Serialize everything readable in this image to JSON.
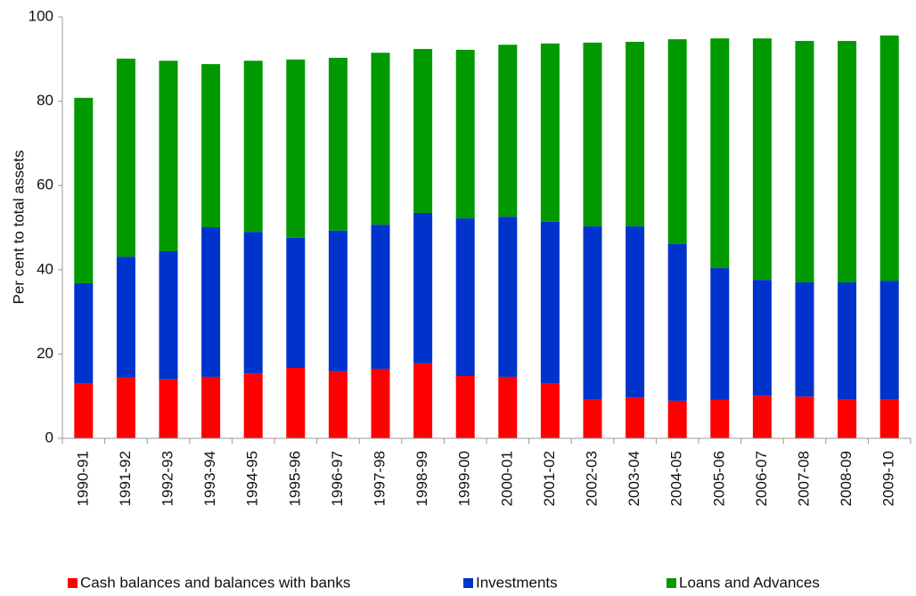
{
  "chart_data": {
    "type": "stacked-bar",
    "y_label": "Per cent to total assets",
    "categories": [
      "1990-91",
      "1991-92",
      "1992-93",
      "1993-94",
      "1994-95",
      "1995-96",
      "1996-97",
      "1997-98",
      "1998-99",
      "1999-00",
      "2000-01",
      "2001-02",
      "2002-03",
      "2003-04",
      "2004-05",
      "2005-06",
      "2006-07",
      "2007-08",
      "2008-09",
      "2009-10"
    ],
    "series": [
      {
        "name": "Cash balances and balances with banks",
        "color": "#ff0000",
        "values": [
          13.1,
          14.4,
          14.0,
          14.6,
          15.4,
          16.7,
          15.9,
          16.5,
          17.8,
          14.8,
          14.6,
          13.1,
          9.3,
          9.7,
          8.9,
          9.1,
          10.1,
          9.9,
          9.3,
          9.3
        ]
      },
      {
        "name": "Investments",
        "color": "#0033cc",
        "values": [
          23.7,
          28.7,
          30.4,
          35.5,
          33.6,
          30.9,
          33.4,
          34.2,
          35.7,
          37.4,
          38.0,
          38.3,
          41.0,
          40.6,
          37.2,
          31.3,
          27.5,
          27.1,
          27.7,
          28.1
        ]
      },
      {
        "name": "Loans and Advances",
        "color": "#009900",
        "values": [
          44.0,
          47.0,
          45.2,
          38.7,
          40.6,
          42.3,
          41.0,
          40.8,
          38.9,
          40.0,
          40.8,
          42.3,
          43.6,
          43.8,
          48.6,
          54.5,
          57.3,
          57.3,
          57.3,
          58.2
        ]
      }
    ],
    "ylim": [
      0,
      100
    ],
    "yticks": [
      0,
      20,
      40,
      60,
      80,
      100
    ],
    "legend": "bottom"
  }
}
